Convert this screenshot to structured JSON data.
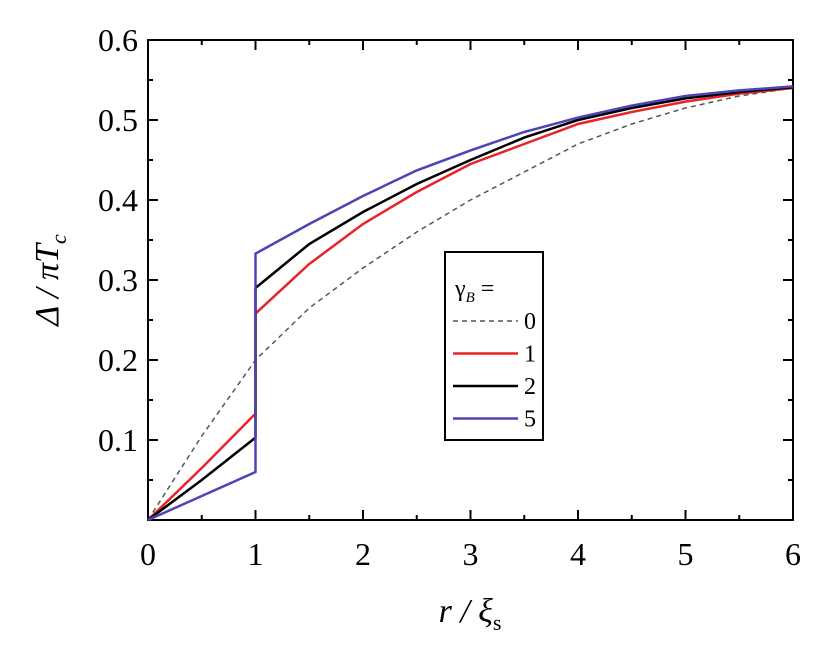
{
  "chart_data": {
    "type": "line",
    "x_label": "r / ξ",
    "x_label_sub": "s",
    "y_label": "Δ / πT",
    "y_label_sub": "c",
    "legend_title": "γ",
    "legend_title_sub": "B",
    "legend_title_end": "=",
    "x": [
      0,
      0.5,
      1,
      1,
      1.5,
      2,
      2.5,
      3,
      3.5,
      4,
      4.5,
      5,
      5.5,
      6
    ],
    "series": [
      {
        "name": "0",
        "color": "#555555",
        "dash": true,
        "values": [
          0,
          0.105,
          0.2,
          0.2,
          0.265,
          0.315,
          0.36,
          0.4,
          0.435,
          0.47,
          0.495,
          0.515,
          0.53,
          0.54
        ]
      },
      {
        "name": "1",
        "color": "#e8232a",
        "values": [
          0,
          0.065,
          0.133,
          0.258,
          0.32,
          0.37,
          0.41,
          0.445,
          0.47,
          0.495,
          0.51,
          0.523,
          0.533,
          0.54
        ]
      },
      {
        "name": "2",
        "color": "#000000",
        "values": [
          0,
          0.05,
          0.103,
          0.29,
          0.345,
          0.385,
          0.42,
          0.45,
          0.478,
          0.5,
          0.515,
          0.527,
          0.535,
          0.541
        ]
      },
      {
        "name": "5",
        "color": "#4b45b5",
        "values": [
          0,
          0.03,
          0.06,
          0.333,
          0.37,
          0.405,
          0.437,
          0.462,
          0.485,
          0.503,
          0.518,
          0.53,
          0.537,
          0.542
        ]
      }
    ],
    "xlim": [
      0,
      6
    ],
    "xticks": [
      0,
      1,
      2,
      3,
      4,
      5,
      6
    ],
    "ylim": [
      0,
      0.6
    ],
    "yticks": [
      0.1,
      0.2,
      0.3,
      0.4,
      0.5,
      0.6
    ]
  }
}
